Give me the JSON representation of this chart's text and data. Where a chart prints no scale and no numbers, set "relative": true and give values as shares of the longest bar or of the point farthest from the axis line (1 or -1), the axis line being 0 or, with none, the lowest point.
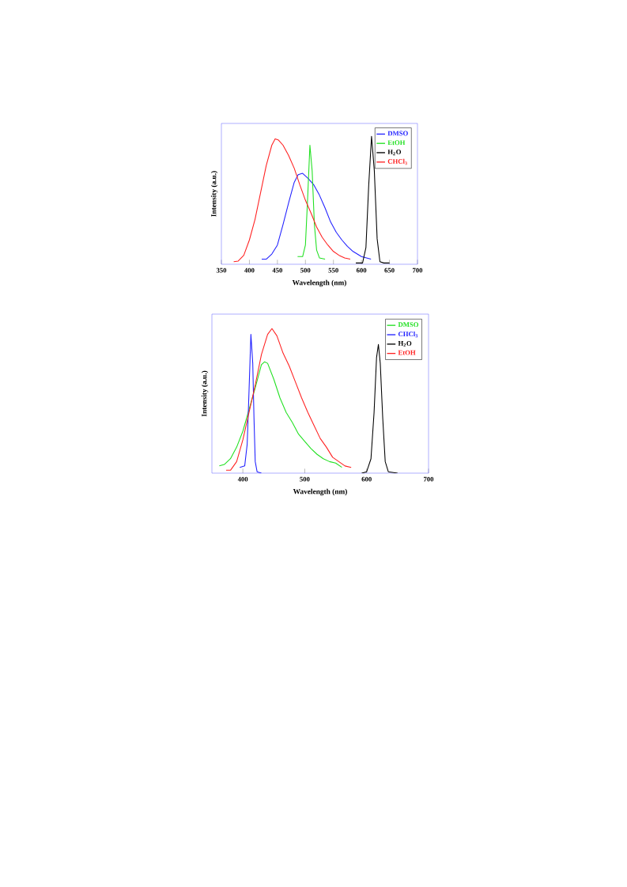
{
  "chart_data": [
    {
      "type": "line",
      "relative": true,
      "xlabel": "Wavelength (nm)",
      "ylabel": "Intensity (a.u.)",
      "xlim": [
        350,
        700
      ],
      "xticks": [
        350,
        400,
        450,
        500,
        550,
        600,
        650,
        700
      ],
      "legend": "top right",
      "series": [
        {
          "name": "DMSO",
          "color": "#2020ff",
          "x": [
            422,
            430,
            440,
            450,
            460,
            470,
            480,
            487,
            495,
            505,
            515,
            525,
            535,
            545,
            555,
            565,
            575,
            585,
            600,
            617
          ],
          "values": [
            0.04,
            0.04,
            0.08,
            0.15,
            0.31,
            0.48,
            0.64,
            0.7,
            0.71,
            0.67,
            0.62,
            0.54,
            0.44,
            0.33,
            0.25,
            0.19,
            0.14,
            0.1,
            0.06,
            0.04
          ]
        },
        {
          "name": "EtOH",
          "color": "#20e020",
          "x": [
            486,
            495,
            500,
            504,
            508,
            512,
            516,
            520,
            525,
            535
          ],
          "values": [
            0.06,
            0.06,
            0.15,
            0.52,
            0.93,
            0.73,
            0.31,
            0.11,
            0.05,
            0.04
          ]
        },
        {
          "name": "H$_{2}$O",
          "color": "#000000",
          "x": [
            590,
            602,
            608,
            613,
            618,
            623,
            628,
            633,
            640,
            650
          ],
          "values": [
            0.01,
            0.01,
            0.13,
            0.62,
            1.0,
            0.73,
            0.2,
            0.02,
            0.01,
            0.01
          ]
        },
        {
          "name": "CHCl$_{3}$",
          "color": "#ff2020",
          "x": [
            372,
            380,
            390,
            400,
            410,
            420,
            430,
            440,
            446,
            452,
            460,
            470,
            480,
            490,
            500,
            510,
            520,
            530,
            540,
            550,
            560,
            570,
            580
          ],
          "values": [
            0.02,
            0.025,
            0.07,
            0.19,
            0.35,
            0.56,
            0.77,
            0.93,
            0.98,
            0.97,
            0.93,
            0.85,
            0.75,
            0.62,
            0.5,
            0.4,
            0.29,
            0.21,
            0.15,
            0.1,
            0.07,
            0.05,
            0.04
          ]
        }
      ]
    },
    {
      "type": "line",
      "relative": true,
      "xlabel": "Wavelength (nm)",
      "ylabel": "Intensity (a.u.)",
      "xlim": [
        350,
        700
      ],
      "xticks": [
        400,
        500,
        600,
        700
      ],
      "legend": "top right",
      "series": [
        {
          "name": "DMSO",
          "color": "#20e020",
          "x": [
            362,
            370,
            380,
            390,
            400,
            410,
            420,
            430,
            435,
            440,
            450,
            460,
            470,
            480,
            490,
            500,
            510,
            520,
            530,
            540,
            550,
            560
          ],
          "values": [
            0.05,
            0.06,
            0.1,
            0.18,
            0.29,
            0.44,
            0.59,
            0.75,
            0.77,
            0.76,
            0.65,
            0.52,
            0.42,
            0.35,
            0.27,
            0.22,
            0.17,
            0.13,
            0.1,
            0.08,
            0.07,
            0.04
          ]
        },
        {
          "name": "CHCl$_{3}$",
          "color": "#2020ff",
          "x": [
            395,
            403,
            407,
            410,
            413,
            416,
            418,
            420,
            423,
            430
          ],
          "values": [
            0.04,
            0.05,
            0.2,
            0.57,
            0.96,
            0.76,
            0.38,
            0.08,
            0.01,
            0.0
          ]
        },
        {
          "name": "H$_{2}$O",
          "color": "#000000",
          "x": [
            592,
            600,
            607,
            612,
            616,
            619,
            622,
            626,
            630,
            635,
            650
          ],
          "values": [
            0.0,
            0.01,
            0.1,
            0.42,
            0.8,
            0.89,
            0.76,
            0.38,
            0.08,
            0.01,
            0.0
          ]
        },
        {
          "name": "EtOH",
          "color": "#ff2020",
          "x": [
            373,
            380,
            390,
            400,
            410,
            420,
            430,
            440,
            447,
            455,
            465,
            475,
            485,
            495,
            505,
            515,
            525,
            535,
            545,
            555,
            565,
            575
          ],
          "values": [
            0.02,
            0.02,
            0.08,
            0.23,
            0.42,
            0.61,
            0.82,
            0.96,
            1.0,
            0.95,
            0.83,
            0.74,
            0.63,
            0.52,
            0.42,
            0.33,
            0.24,
            0.18,
            0.11,
            0.08,
            0.05,
            0.04
          ]
        }
      ]
    }
  ]
}
